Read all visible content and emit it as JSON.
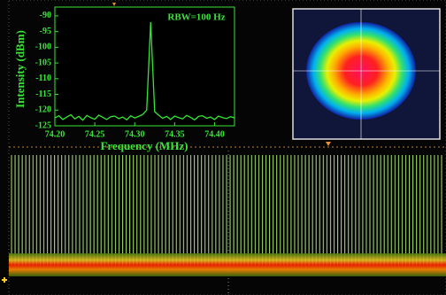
{
  "chart_data": {
    "type": "line",
    "xlabel": "Frequency (MHz)",
    "ylabel": "Intensity (dBm)",
    "annotation": "RBW=100 Hz",
    "x": [
      74.2,
      74.205,
      74.21,
      74.215,
      74.22,
      74.225,
      74.23,
      74.235,
      74.24,
      74.245,
      74.25,
      74.255,
      74.26,
      74.265,
      74.27,
      74.275,
      74.28,
      74.285,
      74.29,
      74.295,
      74.3,
      74.305,
      74.31,
      74.315,
      74.32,
      74.325,
      74.33,
      74.335,
      74.34,
      74.345,
      74.35,
      74.355,
      74.36,
      74.365,
      74.37,
      74.375,
      74.38,
      74.385,
      74.39,
      74.395,
      74.4,
      74.405,
      74.41,
      74.415,
      74.42,
      74.425
    ],
    "series": [
      {
        "color": "#33e633",
        "values": [
          -122.5,
          -121.8,
          -123,
          -122.2,
          -121.5,
          -122.8,
          -122,
          -123.2,
          -121.7,
          -122.4,
          -122.9,
          -121.6,
          -122.3,
          -123,
          -122.1,
          -121.9,
          -122.7,
          -122.2,
          -123.1,
          -121.8,
          -122.5,
          -122,
          -121.4,
          -120,
          -92,
          -120.5,
          -121.6,
          -122.6,
          -122,
          -123,
          -121.9,
          -122.4,
          -122.8,
          -121.7,
          -122.3,
          -123.1,
          -122,
          -121.8,
          -122.6,
          -122.2,
          -123,
          -121.9,
          -122.4,
          -122.7,
          -122.1,
          -122.5
        ]
      }
    ],
    "xlim": [
      74.2,
      74.425
    ],
    "xticks": [
      {
        "value": 74.2,
        "label": "74.20"
      },
      74.25,
      {
        "value": 74.3,
        "label": "74.30"
      },
      74.35,
      {
        "value": 74.4,
        "label": "74.40"
      }
    ],
    "ylim": [
      -125,
      -87.2
    ],
    "yticks": [
      -90,
      -95,
      -100,
      -105,
      -110,
      -115,
      -120,
      -125
    ]
  }
}
